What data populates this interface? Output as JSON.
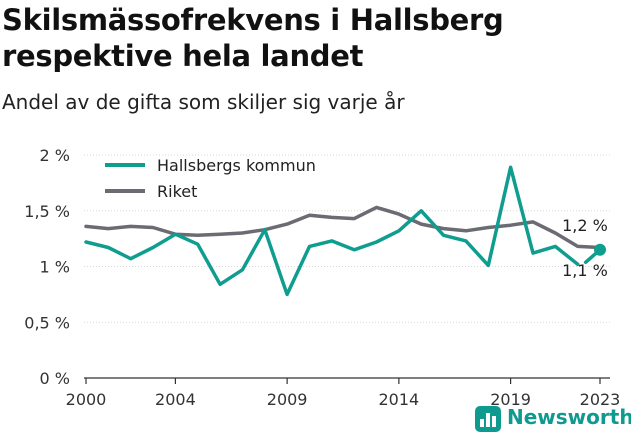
{
  "header": {
    "title": "Skilsmässofrekvens i Hallsberg respektive hela landet",
    "subtitle": "Andel av de gifta som skiljer sig varje år"
  },
  "brand": {
    "name": "Newsworthy",
    "icon": "bar-chart-icon"
  },
  "chart_data": {
    "type": "line",
    "x": [
      2000,
      2001,
      2002,
      2003,
      2004,
      2005,
      2006,
      2007,
      2008,
      2009,
      2010,
      2011,
      2012,
      2013,
      2014,
      2015,
      2016,
      2017,
      2018,
      2019,
      2020,
      2021,
      2022,
      2023
    ],
    "series": [
      {
        "name": "Hallsbergs kommun",
        "color": "#0f9d8f",
        "values": [
          1.22,
          1.17,
          1.07,
          1.17,
          1.29,
          1.2,
          0.84,
          0.97,
          1.33,
          0.75,
          1.18,
          1.23,
          1.15,
          1.22,
          1.32,
          1.5,
          1.28,
          1.23,
          1.01,
          1.89,
          1.12,
          1.18,
          1.02,
          1.15
        ],
        "end_label": "1,1 %"
      },
      {
        "name": "Riket",
        "color": "#6b6b73",
        "values": [
          1.36,
          1.34,
          1.36,
          1.35,
          1.29,
          1.28,
          1.29,
          1.3,
          1.33,
          1.38,
          1.46,
          1.44,
          1.43,
          1.53,
          1.47,
          1.38,
          1.34,
          1.32,
          1.35,
          1.37,
          1.4,
          1.3,
          1.18,
          1.17
        ],
        "end_label": "1,2 %"
      }
    ],
    "x_ticks": [
      2000,
      2004,
      2009,
      2014,
      2019,
      2023
    ],
    "x_tick_labels": [
      "2000",
      "2004",
      "2009",
      "2014",
      "2019",
      "2023"
    ],
    "y_ticks": [
      0,
      0.5,
      1,
      1.5,
      2
    ],
    "y_tick_labels": [
      "0 %",
      "0,5 %",
      "1 %",
      "1,5 %",
      "2 %"
    ],
    "ylim": [
      0,
      2
    ],
    "xlim": [
      2000,
      2023
    ],
    "legend_position": "top-left",
    "grid": true
  }
}
